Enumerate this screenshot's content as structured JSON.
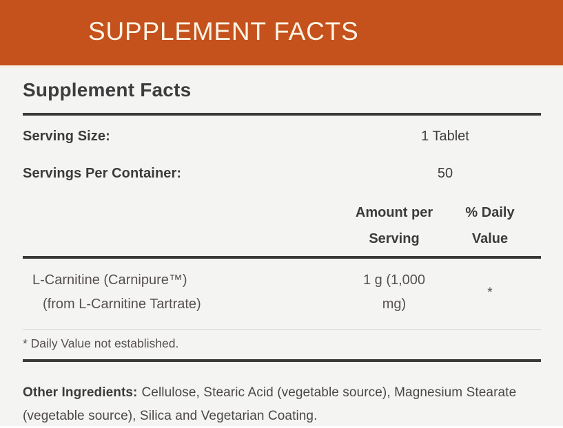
{
  "banner": {
    "title": "SUPPLEMENT FACTS",
    "bg_color": "#C5511C",
    "text_color": "#FAF3E4"
  },
  "panel": {
    "heading": "Supplement Facts",
    "serving_rows": [
      {
        "label": "Serving Size:",
        "value": "1 Tablet"
      },
      {
        "label": "Servings Per Container:",
        "value": "50"
      }
    ],
    "columns": {
      "amount": "Amount per Serving",
      "daily_value": "% Daily Value"
    },
    "ingredients": [
      {
        "name_lines": [
          "L-Carnitine (Carnipure™)",
          "(from L-Carnitine Tartrate)"
        ],
        "amount": "1 g (1,000 mg)",
        "daily_value": "*"
      }
    ],
    "footnote": "* Daily Value not established.",
    "other_ingredients": {
      "label": "Other Ingredients:",
      "text": "Cellulose, Stearic Acid (vegetable source), Magnesium Stearate (vegetable source), Silica and Vegetarian Coating."
    }
  }
}
